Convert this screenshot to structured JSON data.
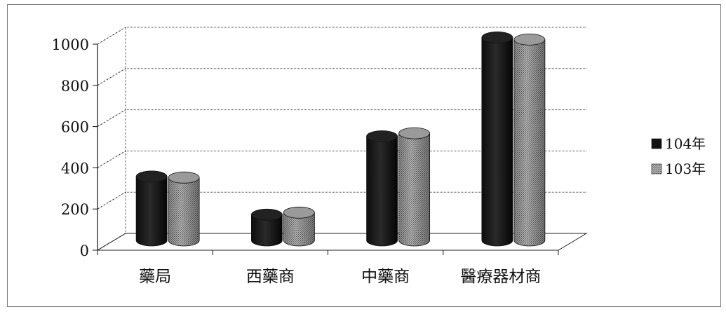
{
  "chart_data": {
    "type": "bar",
    "categories": [
      "藥局",
      "西藥商",
      "中藥商",
      "醫療器材商"
    ],
    "series": [
      {
        "name": "104年",
        "values": [
          310,
          125,
          505,
          985
        ]
      },
      {
        "name": "103年",
        "values": [
          305,
          135,
          520,
          975
        ]
      }
    ],
    "ylim": [
      0,
      1000
    ],
    "yticks": [
      0,
      200,
      400,
      600,
      800,
      1000
    ],
    "grid": true,
    "legend": "right",
    "colors": {
      "104年": "#1a1a1a",
      "103年": "#8c8c8c"
    }
  }
}
